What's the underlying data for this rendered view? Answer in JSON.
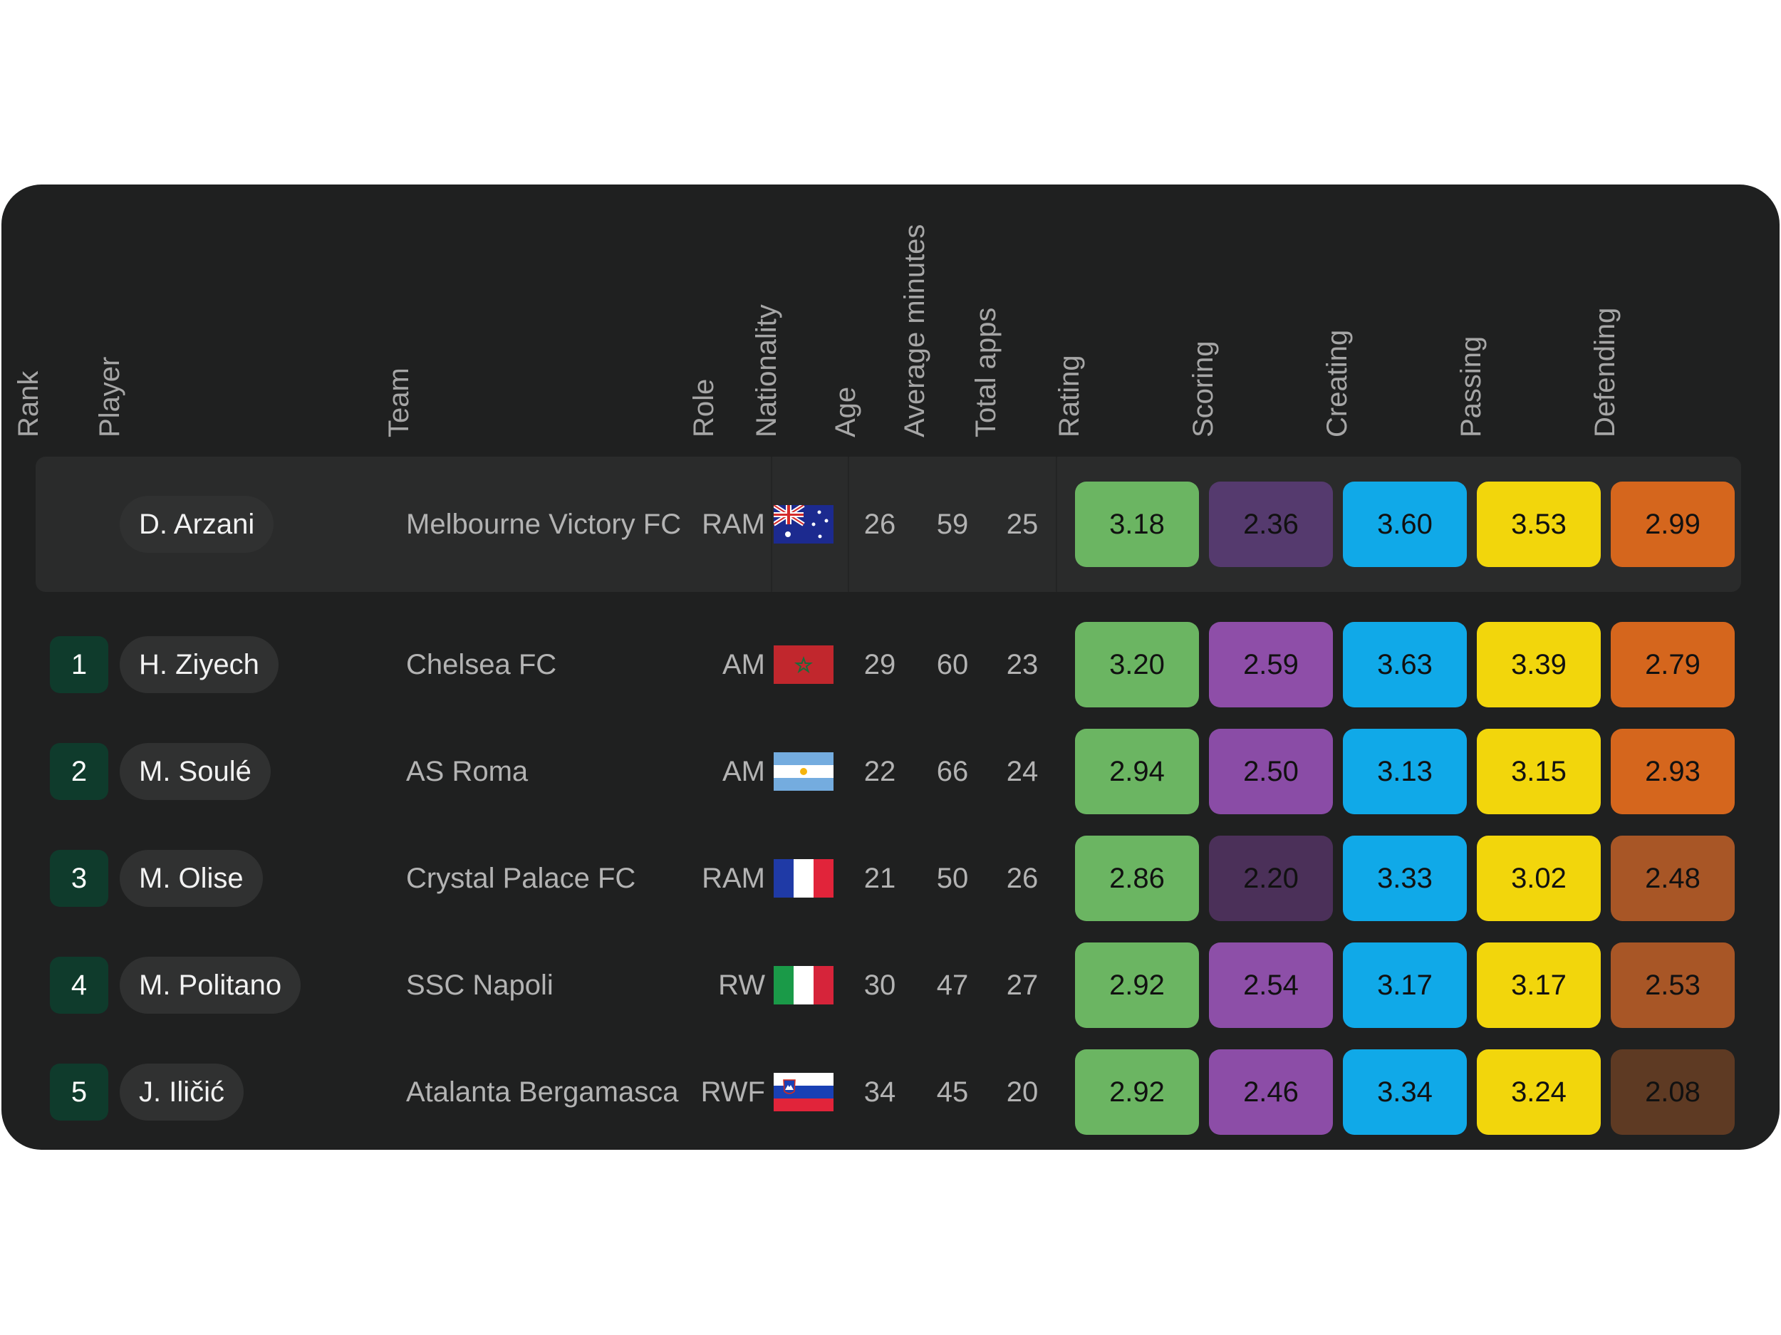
{
  "headers": {
    "rank": "Rank",
    "player": "Player",
    "team": "Team",
    "role": "Role",
    "nationality": "Nationality",
    "age": "Age",
    "avg_minutes": "Average minutes",
    "total_apps": "Total apps",
    "rating": "Rating",
    "scoring": "Scoring",
    "creating": "Creating",
    "passing": "Passing",
    "defending": "Defending"
  },
  "reference": {
    "rank": "",
    "player": "D. Arzani",
    "team": "Melbourne Victory FC",
    "role": "RAM",
    "nationality_icon": "australia-flag",
    "age": "26",
    "avg_minutes": "59",
    "total_apps": "25",
    "rating": "3.18",
    "scoring": "2.36",
    "creating": "3.60",
    "passing": "3.53",
    "defending": "2.99"
  },
  "rows": [
    {
      "rank": "1",
      "player": "H. Ziyech",
      "team": "Chelsea FC",
      "role": "AM",
      "nationality_icon": "morocco-flag",
      "age": "29",
      "avg_minutes": "60",
      "total_apps": "23",
      "rating": "3.20",
      "scoring": "2.59",
      "creating": "3.63",
      "passing": "3.39",
      "defending": "2.79"
    },
    {
      "rank": "2",
      "player": "M. Soulé",
      "team": "AS Roma",
      "role": "AM",
      "nationality_icon": "argentina-flag",
      "age": "22",
      "avg_minutes": "66",
      "total_apps": "24",
      "rating": "2.94",
      "scoring": "2.50",
      "creating": "3.13",
      "passing": "3.15",
      "defending": "2.93"
    },
    {
      "rank": "3",
      "player": "M. Olise",
      "team": "Crystal Palace FC",
      "role": "RAM",
      "nationality_icon": "france-flag",
      "age": "21",
      "avg_minutes": "50",
      "total_apps": "26",
      "rating": "2.86",
      "scoring": "2.20",
      "creating": "3.33",
      "passing": "3.02",
      "defending": "2.48"
    },
    {
      "rank": "4",
      "player": "M. Politano",
      "team": "SSC Napoli",
      "role": "RW",
      "nationality_icon": "italy-flag",
      "age": "30",
      "avg_minutes": "47",
      "total_apps": "27",
      "rating": "2.92",
      "scoring": "2.54",
      "creating": "3.17",
      "passing": "3.17",
      "defending": "2.53"
    },
    {
      "rank": "5",
      "player": "J. Iličić",
      "team": "Atalanta Bergamasca",
      "role": "RWF",
      "nationality_icon": "slovenia-flag",
      "age": "34",
      "avg_minutes": "45",
      "total_apps": "20",
      "rating": "2.92",
      "scoring": "2.46",
      "creating": "3.34",
      "passing": "3.24",
      "defending": "2.08"
    }
  ],
  "colors": {
    "rating": "#6bb562",
    "scoring": [
      "#553a6e",
      "#8e4ea8",
      "#8a4ca6",
      "#4b3059",
      "#8d4fa8",
      "#8c4da7"
    ],
    "creating": "#10a9e8",
    "passing": "#f2d60c",
    "defending": [
      "#d5661d",
      "#d5661d",
      "#d5661d",
      "#a85626",
      "#a85626",
      "#5e3a23"
    ]
  }
}
